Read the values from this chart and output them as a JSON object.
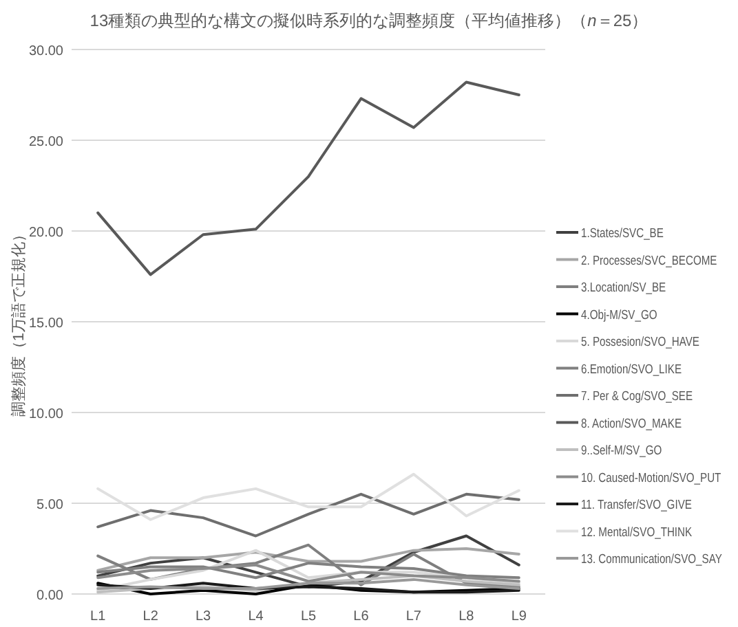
{
  "chart_data": {
    "type": "line",
    "title": "13種類の典型的な構文の擬似時系列的な調整頻度（平均値推移）（*n*＝25）",
    "ylabel": "調整頻度（1万語で正規化）",
    "categories": [
      "L1",
      "L2",
      "L3",
      "L4",
      "L5",
      "L6",
      "L7",
      "L8",
      "L9"
    ],
    "ylim": [
      0,
      30
    ],
    "yticks": [
      {
        "value": 0,
        "label": "0.00"
      },
      {
        "value": 5,
        "label": "5.00"
      },
      {
        "value": 10,
        "label": "10.00"
      },
      {
        "value": 15,
        "label": "15.00"
      },
      {
        "value": 20,
        "label": "20.00"
      },
      {
        "value": 25,
        "label": "25.00"
      },
      {
        "value": 30,
        "label": "30.00"
      }
    ],
    "grid": "y",
    "legend": "right",
    "series": [
      {
        "name": "1.States/SVC_BE",
        "color": "#404040",
        "values": [
          1.0,
          1.7,
          2.0,
          1.2,
          0.4,
          0.7,
          2.3,
          3.2,
          1.6
        ]
      },
      {
        "name": "2. Processes/SVC_BECOME",
        "color": "#a6a6a6",
        "values": [
          1.3,
          2.0,
          2.0,
          2.3,
          1.8,
          1.8,
          2.4,
          2.5,
          2.2
        ]
      },
      {
        "name": "3.Location/SV_BE",
        "color": "#7f7f7f",
        "values": [
          2.1,
          0.8,
          1.4,
          1.7,
          2.7,
          0.5,
          2.2,
          0.6,
          0.4
        ]
      },
      {
        "name": "4.Obj-M/SV_GO",
        "color": "#000000",
        "values": [
          0.6,
          0.0,
          0.2,
          0.0,
          0.5,
          0.2,
          0.1,
          0.2,
          0.3
        ]
      },
      {
        "name": "5. Possesion/SVO_HAVE",
        "color": "#d9d9d9",
        "values": [
          0.2,
          0.8,
          1.3,
          2.4,
          0.9,
          1.2,
          1.2,
          0.9,
          0.6
        ]
      },
      {
        "name": "6.Emotion/SVO_LIKE",
        "color": "#808080",
        "values": [
          1.2,
          1.5,
          1.5,
          0.9,
          1.7,
          1.5,
          1.4,
          1.0,
          0.9
        ]
      },
      {
        "name": "7. Per & Cog/SVO_SEE",
        "color": "#6e6e6e",
        "values": [
          3.7,
          4.6,
          4.2,
          3.2,
          4.4,
          5.5,
          4.4,
          5.5,
          5.2
        ]
      },
      {
        "name": "8. Action/SVO_MAKE",
        "color": "#595959",
        "values": [
          21.0,
          17.6,
          19.8,
          20.1,
          23.0,
          27.3,
          25.7,
          28.2,
          27.5
        ]
      },
      {
        "name": "9..Self-M/SV_GO",
        "color": "#bfbfbf",
        "values": [
          0.1,
          0.3,
          0.4,
          0.2,
          0.6,
          0.8,
          1.0,
          0.7,
          0.5
        ]
      },
      {
        "name": "10. Caused-Motion/SVO_PUT",
        "color": "#8c8c8c",
        "values": [
          0.9,
          1.3,
          1.4,
          1.6,
          0.7,
          1.2,
          1.0,
          0.9,
          0.7
        ]
      },
      {
        "name": "11. Transfer/SVO_GIVE",
        "color": "#1a1a1a",
        "values": [
          0.5,
          0.3,
          0.6,
          0.3,
          0.4,
          0.3,
          0.1,
          0.1,
          0.2
        ]
      },
      {
        "name": "12. Mental/SVO_THINK",
        "color": "#e0e0e0",
        "values": [
          5.8,
          4.1,
          5.3,
          5.8,
          4.8,
          4.8,
          6.6,
          4.3,
          5.7
        ]
      },
      {
        "name": "13. Communication/SVO_SAY",
        "color": "#999999",
        "values": [
          0.3,
          0.4,
          0.3,
          0.3,
          0.6,
          0.6,
          0.8,
          0.5,
          0.3
        ]
      }
    ]
  }
}
